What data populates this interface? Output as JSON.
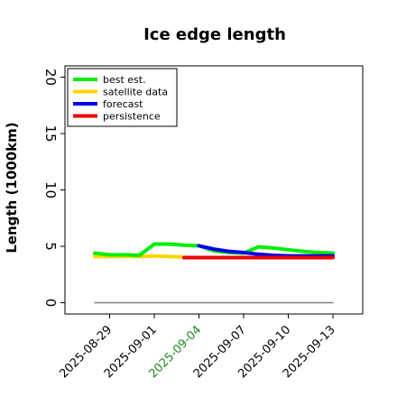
{
  "chart_data": {
    "type": "line",
    "title": "Ice edge length",
    "xlabel": "",
    "ylabel": "Length (1000km)",
    "ylim": [
      -1,
      21
    ],
    "xlim": [
      "2025-08-26",
      "2025-09-15"
    ],
    "yticks": [
      0,
      5,
      10,
      15,
      20
    ],
    "xticks": [
      "2025-08-29",
      "2025-09-01",
      "2025-09-04",
      "2025-09-07",
      "2025-09-10",
      "2025-09-13"
    ],
    "highlighted_xtick": "2025-09-04",
    "highlight_color": "#228b22",
    "grid": false,
    "legend_position": "top-left",
    "series": [
      {
        "name": "best est.",
        "color": "#00ee00",
        "x": [
          "2025-08-28",
          "2025-08-29",
          "2025-08-30",
          "2025-08-31",
          "2025-09-01",
          "2025-09-02",
          "2025-09-03",
          "2025-09-04",
          "2025-09-05",
          "2025-09-06",
          "2025-09-07",
          "2025-09-08",
          "2025-09-09",
          "2025-09-10",
          "2025-09-11",
          "2025-09-12",
          "2025-09-13"
        ],
        "values": [
          4.4,
          4.25,
          4.25,
          4.2,
          5.2,
          5.2,
          5.1,
          5.05,
          4.6,
          4.45,
          4.4,
          4.95,
          4.85,
          4.7,
          4.55,
          4.45,
          4.4
        ]
      },
      {
        "name": "satellite data",
        "color": "#ffd700",
        "x": [
          "2025-08-28",
          "2025-08-29",
          "2025-08-30",
          "2025-08-31",
          "2025-09-01",
          "2025-09-02",
          "2025-09-03"
        ],
        "values": [
          4.1,
          4.1,
          4.1,
          4.1,
          4.15,
          4.1,
          4.05
        ]
      },
      {
        "name": "forecast",
        "color": "#0000ee",
        "x": [
          "2025-09-04",
          "2025-09-05",
          "2025-09-06",
          "2025-09-07",
          "2025-09-08",
          "2025-09-09",
          "2025-09-10",
          "2025-09-11",
          "2025-09-12",
          "2025-09-13"
        ],
        "values": [
          5.05,
          4.75,
          4.55,
          4.45,
          4.3,
          4.2,
          4.15,
          4.15,
          4.15,
          4.15
        ]
      },
      {
        "name": "persistence",
        "color": "#ee0000",
        "x": [
          "2025-09-03",
          "2025-09-13"
        ],
        "values": [
          4.0,
          4.0
        ]
      },
      {
        "name": "",
        "color": "#808080",
        "x": [
          "2025-08-28",
          "2025-09-13"
        ],
        "values": [
          0,
          0
        ]
      }
    ]
  }
}
